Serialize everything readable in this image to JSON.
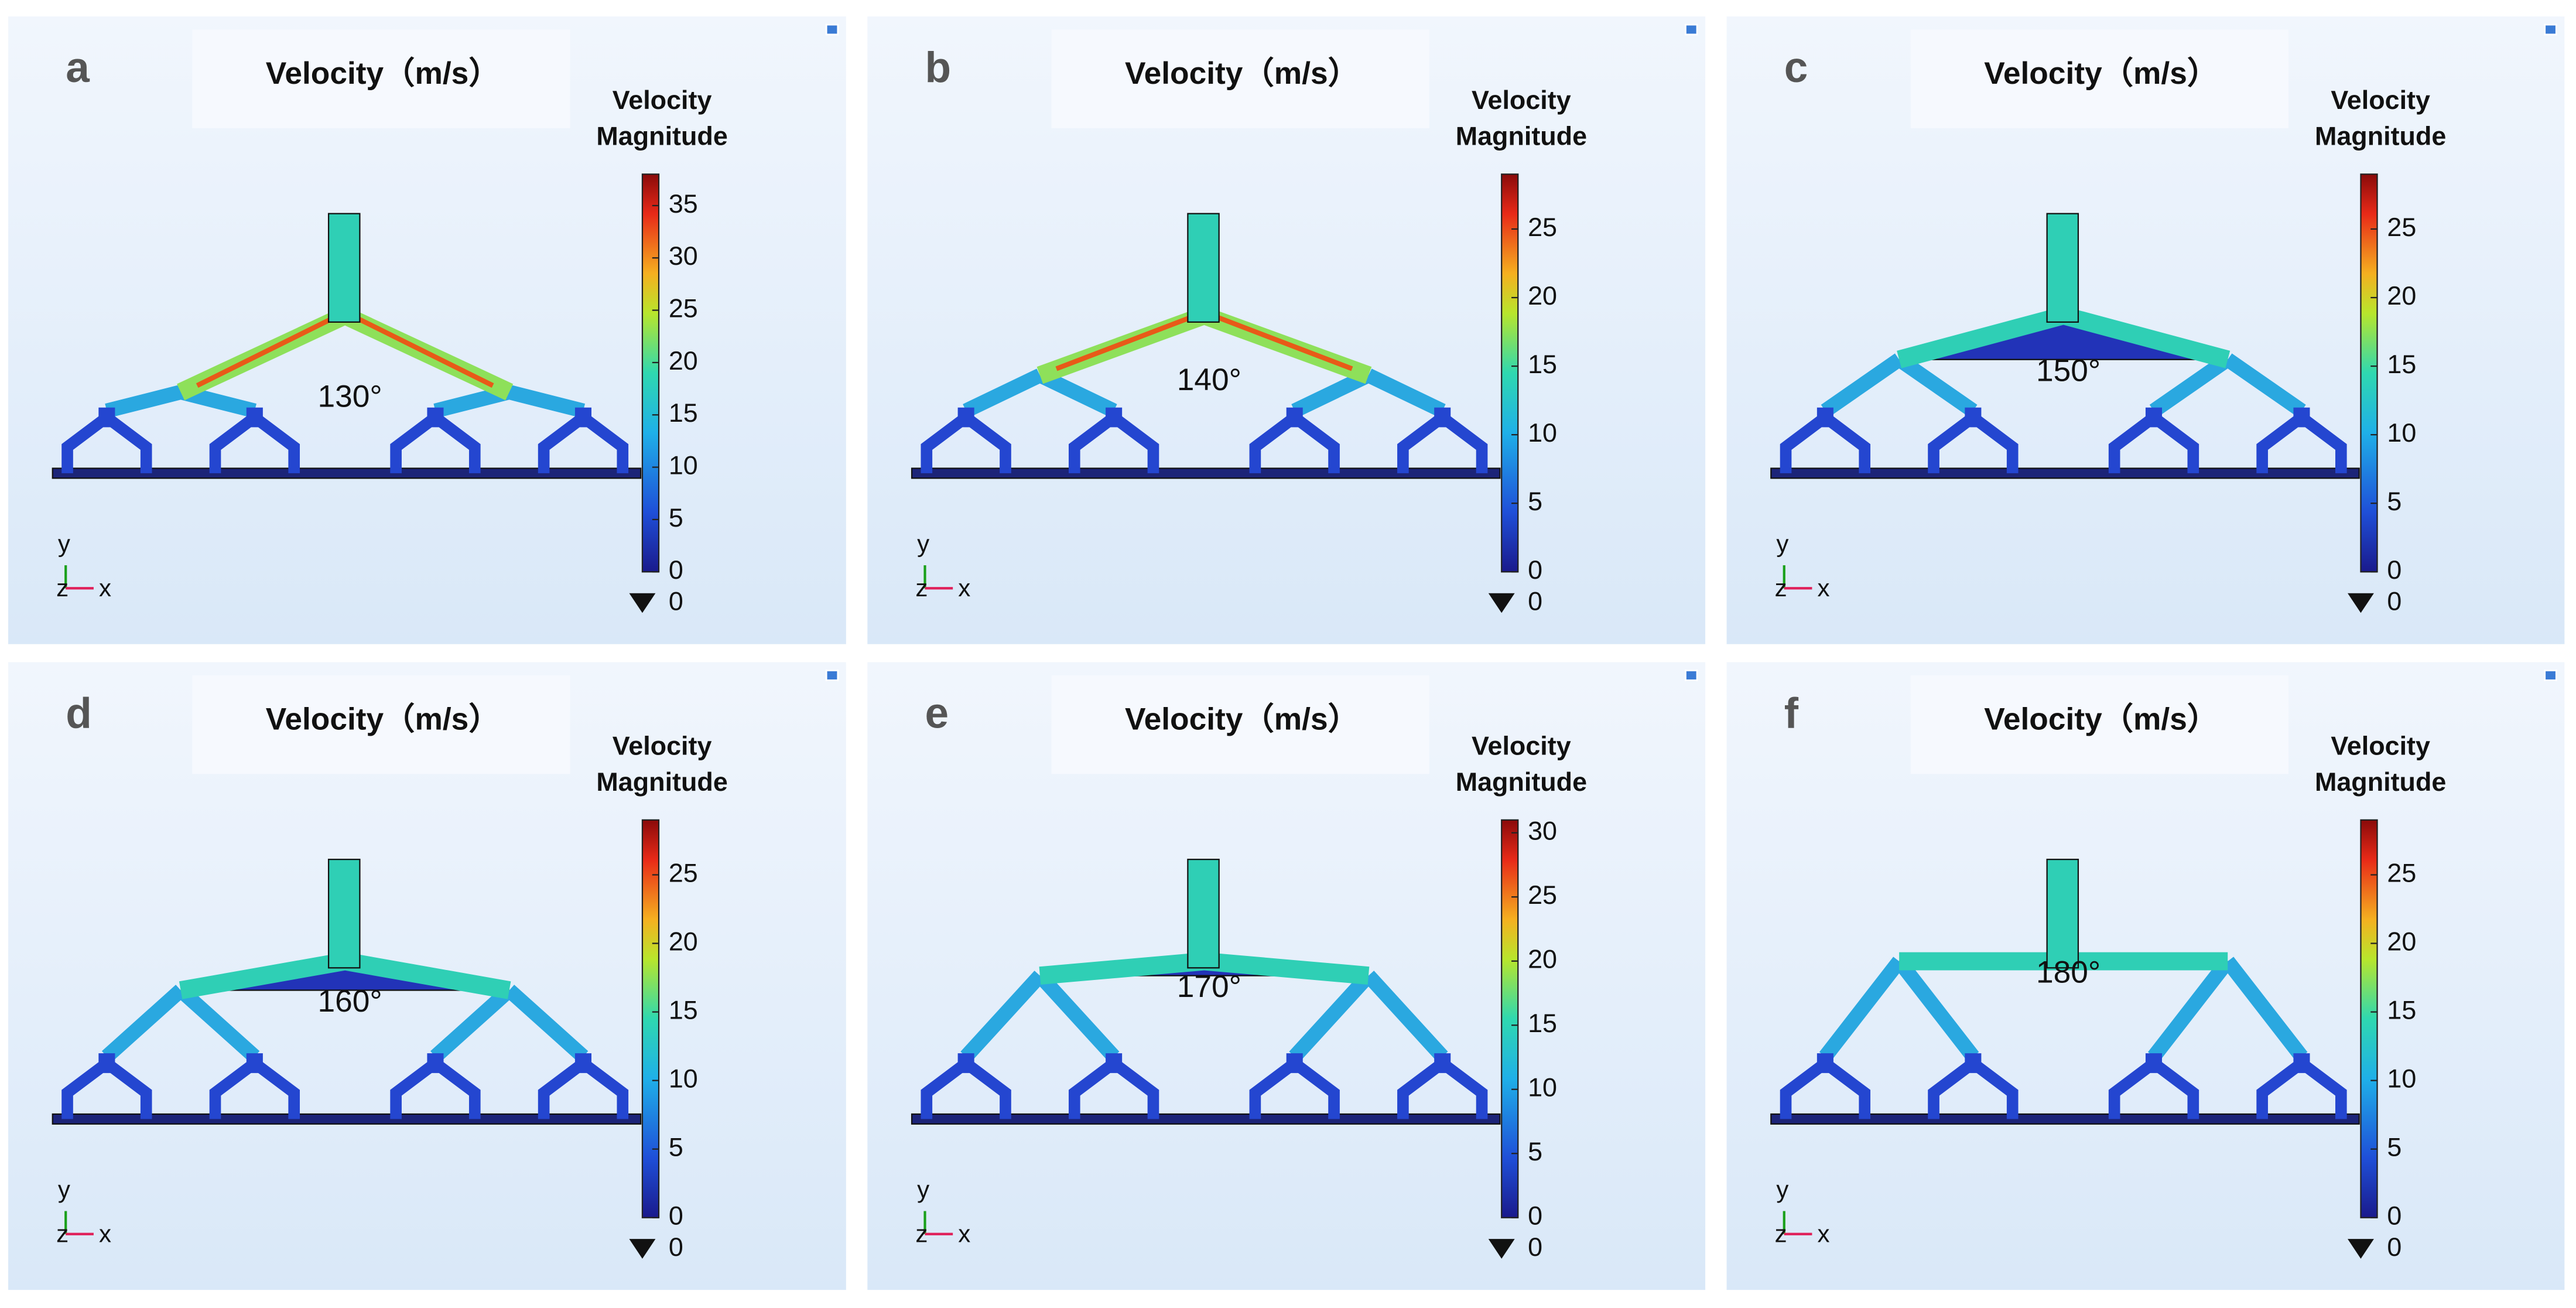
{
  "panels": [
    {
      "label": "a",
      "title": "Velocity（m/s）",
      "legend_title": [
        "Velocity",
        "Magnitude"
      ],
      "angle": "130°",
      "ticks": [
        0,
        5,
        10,
        15,
        20,
        25,
        30,
        35
      ],
      "clim": [
        0,
        38
      ],
      "min_marker": "0",
      "axes": [
        "y",
        "z",
        "x"
      ]
    },
    {
      "label": "b",
      "title": "Velocity（m/s）",
      "legend_title": [
        "Velocity",
        "Magnitude"
      ],
      "angle": "140°",
      "ticks": [
        0,
        5,
        10,
        15,
        20,
        25
      ],
      "clim": [
        0,
        29
      ],
      "min_marker": "0",
      "axes": [
        "y",
        "z",
        "x"
      ]
    },
    {
      "label": "c",
      "title": "Velocity（m/s）",
      "legend_title": [
        "Velocity",
        "Magnitude"
      ],
      "angle": "150°",
      "ticks": [
        0,
        5,
        10,
        15,
        20,
        25
      ],
      "clim": [
        0,
        29
      ],
      "min_marker": "0",
      "axes": [
        "y",
        "z",
        "x"
      ]
    },
    {
      "label": "d",
      "title": "Velocity（m/s）",
      "legend_title": [
        "Velocity",
        "Magnitude"
      ],
      "angle": "160°",
      "ticks": [
        0,
        5,
        10,
        15,
        20,
        25
      ],
      "clim": [
        0,
        29
      ],
      "min_marker": "0",
      "axes": [
        "y",
        "z",
        "x"
      ]
    },
    {
      "label": "e",
      "title": "Velocity（m/s）",
      "legend_title": [
        "Velocity",
        "Magnitude"
      ],
      "angle": "170°",
      "ticks": [
        0,
        5,
        10,
        15,
        20,
        25,
        30
      ],
      "clim": [
        0,
        31
      ],
      "min_marker": "0",
      "axes": [
        "y",
        "z",
        "x"
      ]
    },
    {
      "label": "f",
      "title": "Velocity（m/s）",
      "legend_title": [
        "Velocity",
        "Magnitude"
      ],
      "angle": "180°",
      "ticks": [
        0,
        5,
        10,
        15,
        20,
        25
      ],
      "clim": [
        0,
        29
      ],
      "min_marker": "0",
      "axes": [
        "y",
        "z",
        "x"
      ]
    }
  ]
}
